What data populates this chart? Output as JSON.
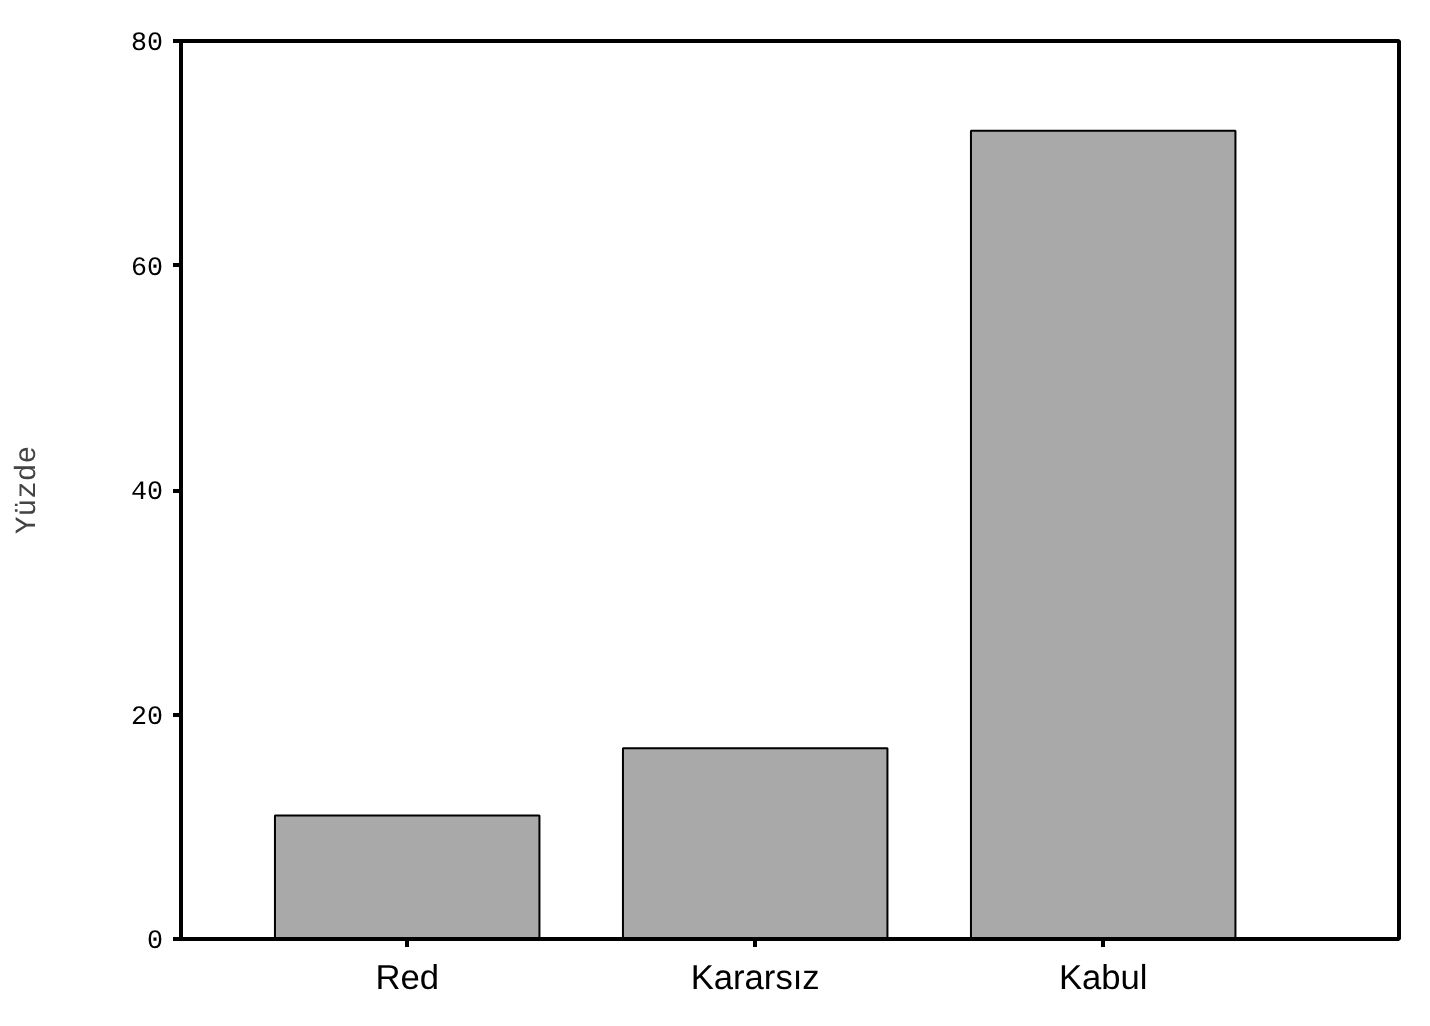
{
  "chart_data": {
    "type": "bar",
    "ylabel": "Yüzde",
    "categories": [
      "Red",
      "Kararsız",
      "Kabul"
    ],
    "values": [
      11,
      17,
      72
    ],
    "color": "#a9a9a9",
    "ylim": [
      0,
      80
    ],
    "yticks": [
      0,
      20,
      40,
      60,
      80
    ],
    "grid": false
  }
}
